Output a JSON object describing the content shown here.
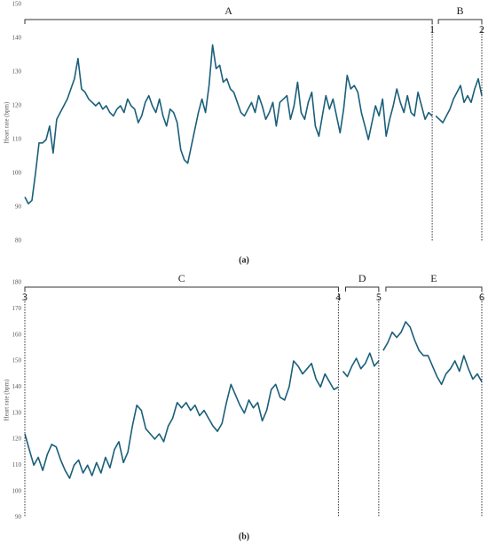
{
  "chart_data": [
    {
      "type": "line",
      "ylabel": "Heart rate (bpm)",
      "caption": "(a)",
      "ylim": [
        80,
        150
      ],
      "yticks": [
        80,
        90,
        100,
        110,
        120,
        130,
        140,
        150
      ],
      "boundaries": [
        "1",
        "2"
      ],
      "series": [
        {
          "name": "A",
          "color": "#1a5f7a",
          "values": [
            93,
            91,
            92,
            100,
            109,
            109,
            110,
            114,
            106,
            116,
            118,
            120,
            122,
            125,
            128,
            134,
            125,
            124,
            122,
            121,
            120,
            121,
            119,
            120,
            118,
            117,
            119,
            120,
            118,
            122,
            120,
            119,
            115,
            117,
            121,
            123,
            120,
            118,
            122,
            117,
            114,
            119,
            118,
            115,
            107,
            104,
            103,
            108,
            113,
            118,
            122,
            118,
            126,
            138,
            131,
            132,
            127,
            128,
            125,
            124,
            121,
            118,
            117,
            119,
            121,
            118,
            123,
            120,
            116,
            118,
            121,
            114,
            121,
            122,
            123,
            116,
            120,
            127,
            118,
            116,
            121,
            124,
            114,
            111,
            117,
            123,
            119,
            122,
            117,
            112,
            119,
            129,
            125,
            126,
            124,
            118,
            114,
            110,
            115,
            120,
            117,
            122,
            111,
            116,
            120,
            125,
            121,
            118,
            123,
            118,
            117,
            124,
            120,
            116,
            118,
            117
          ]
        },
        {
          "name": "B",
          "color": "#1a5f7a",
          "values": [
            117,
            116,
            115,
            117,
            119,
            122,
            124,
            126,
            121,
            123,
            121,
            125,
            128,
            123
          ]
        }
      ]
    },
    {
      "type": "line",
      "ylabel": "Heart rate (bpm)",
      "caption": "(b)",
      "ylim": [
        90,
        180
      ],
      "yticks": [
        90,
        100,
        110,
        120,
        130,
        140,
        150,
        160,
        170,
        180
      ],
      "boundaries": [
        "3",
        "4",
        "5",
        "6"
      ],
      "series": [
        {
          "name": "C",
          "color": "#1a5f7a",
          "values": [
            122,
            116,
            110,
            113,
            108,
            114,
            118,
            117,
            112,
            108,
            105,
            110,
            112,
            107,
            110,
            106,
            111,
            107,
            113,
            109,
            116,
            119,
            111,
            115,
            125,
            133,
            131,
            124,
            122,
            120,
            122,
            119,
            125,
            128,
            134,
            132,
            134,
            131,
            133,
            129,
            131,
            128,
            125,
            123,
            126,
            134,
            141,
            137,
            133,
            130,
            135,
            132,
            134,
            127,
            131,
            139,
            141,
            136,
            135,
            140,
            150,
            148,
            145,
            147,
            149,
            143,
            140,
            145,
            142,
            139,
            140
          ]
        },
        {
          "name": "D",
          "color": "#1a5f7a",
          "values": [
            146,
            144,
            148,
            151,
            147,
            149,
            153,
            148,
            150
          ]
        },
        {
          "name": "E",
          "color": "#1a5f7a",
          "values": [
            154,
            157,
            161,
            159,
            161,
            165,
            163,
            158,
            154,
            152,
            152,
            148,
            144,
            141,
            145,
            147,
            150,
            146,
            152,
            147,
            143,
            145,
            142
          ]
        }
      ]
    }
  ]
}
